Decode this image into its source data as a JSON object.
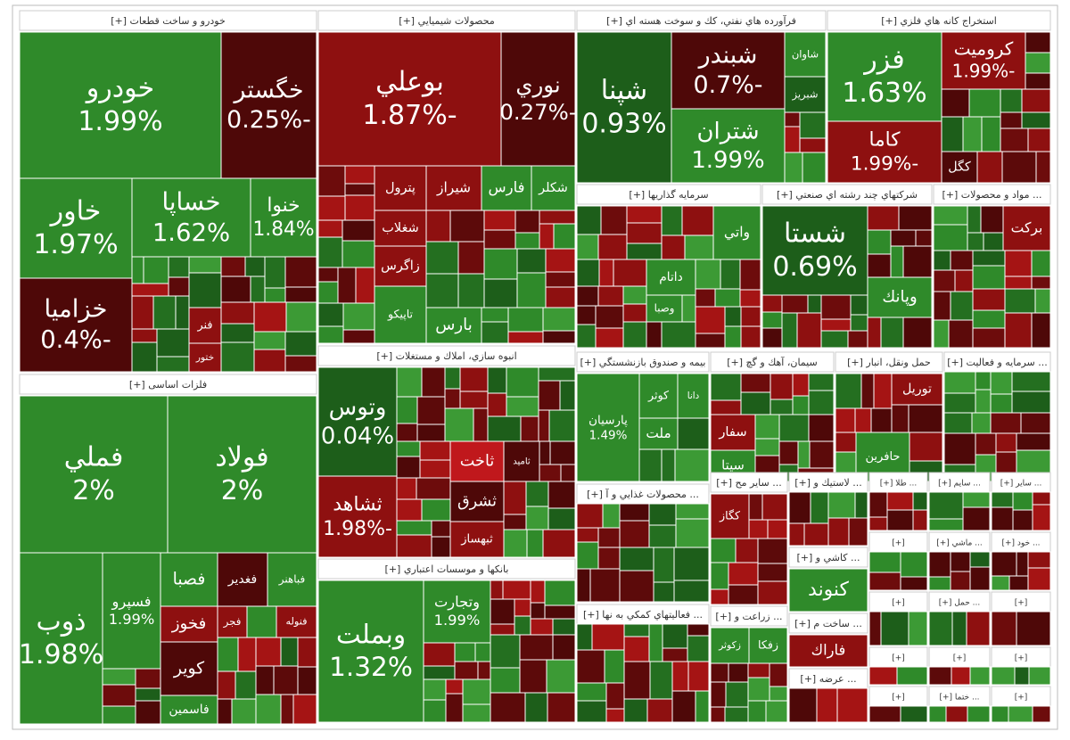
{
  "sectors": [
    {
      "title": "خودرو و ساخت قطعات [+]",
      "tiles": [
        {
          "label": "خودرو",
          "change": "1.99%"
        },
        {
          "label": "خگستر",
          "change": "-0.25%"
        },
        {
          "label": "خاور",
          "change": "1.97%"
        },
        {
          "label": "خساپا",
          "change": "1.62%"
        },
        {
          "label": "خنوا",
          "change": "1.84%"
        },
        {
          "label": "خزامیا",
          "change": "-0.4%"
        },
        {
          "label": "فنر"
        },
        {
          "label": "ختور"
        }
      ]
    },
    {
      "title": "فلزات اساسی [+]",
      "tiles": [
        {
          "label": "فملي",
          "change": "2%"
        },
        {
          "label": "فولاد",
          "change": "2%"
        },
        {
          "label": "ذوب",
          "change": "1.98%"
        },
        {
          "label": "فسپرو",
          "change": "1.99%"
        },
        {
          "label": "فباهنر"
        },
        {
          "label": "فغدير"
        },
        {
          "label": "فصبا"
        },
        {
          "label": "فنوله"
        },
        {
          "label": "فجر"
        },
        {
          "label": "فخوز"
        },
        {
          "label": "كوير"
        },
        {
          "label": "فاسمين"
        }
      ]
    },
    {
      "title": "محصولات شيميايي [+]",
      "tiles": [
        {
          "label": "بوعلي",
          "change": "-1.87%"
        },
        {
          "label": "نوري",
          "change": "-0.27%"
        },
        {
          "label": "شكلر"
        },
        {
          "label": "فارس"
        },
        {
          "label": "شيراز"
        },
        {
          "label": "پترول"
        },
        {
          "label": "شغلاب"
        },
        {
          "label": "زاگرس"
        },
        {
          "label": "تاپيكو"
        },
        {
          "label": "بارس"
        }
      ]
    },
    {
      "title": "انبوه سازي، املاك و مستغلات [+]",
      "tiles": [
        {
          "label": "وتوس",
          "change": "0.04%"
        },
        {
          "label": "ثشاهد",
          "change": "-1.98%"
        },
        {
          "label": "ثاخت"
        },
        {
          "label": "ثاميد"
        },
        {
          "label": "ثشرق"
        },
        {
          "label": "ثبهساز"
        }
      ]
    },
    {
      "title": "بانكها و موسسات اعتباري [+]",
      "tiles": [
        {
          "label": "وبملت",
          "change": "1.32%"
        },
        {
          "label": "وتجارت",
          "change": "1.99%"
        }
      ]
    },
    {
      "title": "فرآورده هاي نفتي، كك و سوخت هسته اي [+]",
      "tiles": [
        {
          "label": "شپنا",
          "change": "0.93%"
        },
        {
          "label": "شبندر",
          "change": "-0.7%"
        },
        {
          "label": "شتران",
          "change": "1.99%"
        },
        {
          "label": "شاوان"
        },
        {
          "label": "شبريز"
        }
      ]
    },
    {
      "title": "استخراج كانه هاي فلزي [+]",
      "tiles": [
        {
          "label": "فزر",
          "change": "1.63%"
        },
        {
          "label": "كروميت",
          "change": "-1.99%"
        },
        {
          "label": "كاما",
          "change": "-1.99%"
        },
        {
          "label": "كگل"
        }
      ]
    },
    {
      "title": "سرمايه گذاريها [+]",
      "tiles": [
        {
          "label": "واتي"
        },
        {
          "label": "داتام"
        },
        {
          "label": "وصبا"
        }
      ]
    },
    {
      "title": "شركتهاي چند رشته اي صنعتي [+]",
      "tiles": [
        {
          "label": "شستا",
          "change": "0.69%"
        },
        {
          "label": "وپانك"
        }
      ]
    },
    {
      "title": "... مواد و محصولات [+]",
      "tiles": [
        {
          "label": "بركت"
        }
      ]
    },
    {
      "title": "بيمه و صندوق بازنشستگي [+]",
      "tiles": [
        {
          "label": "پارسيان",
          "change": "1.49%"
        },
        {
          "label": "كوثر"
        },
        {
          "label": "دانا"
        },
        {
          "label": "ملت"
        }
      ]
    },
    {
      "title": "سيمان، آهك و گچ [+]",
      "tiles": [
        {
          "label": "سفار"
        },
        {
          "label": "سيتا"
        }
      ]
    },
    {
      "title": "حمل ونقل، انبار [+]",
      "tiles": [
        {
          "label": "توريل"
        },
        {
          "label": "حافرين"
        }
      ]
    },
    {
      "title": "... سرمايه و فعاليت [+]",
      "tiles": []
    },
    {
      "title": "... محصولات غذايي و آ [+]",
      "tiles": []
    },
    {
      "title": "... ساير مح [+]",
      "tiles": [
        {
          "label": "كگاز"
        }
      ]
    },
    {
      "title": "... فعاليتهاي كمكي به نها [+]",
      "tiles": []
    },
    {
      "title": "... زراعت و [+]",
      "tiles": [
        {
          "label": "زفكا"
        },
        {
          "label": "زكوثر"
        }
      ]
    },
    {
      "title": "... لاستيك و [+]",
      "tiles": []
    },
    {
      "title": "... كاشي و [+]",
      "tiles": [
        {
          "label": "كنوند"
        }
      ]
    },
    {
      "title": "... ساخت م [+]",
      "tiles": [
        {
          "label": "فاراك"
        }
      ]
    },
    {
      "title": "... عرضه [+]",
      "tiles": []
    },
    {
      "title": "... طلا [+]",
      "tiles": []
    },
    {
      "title": "... سايم [+]",
      "tiles": []
    },
    {
      "title": "... ساير [+]",
      "tiles": []
    },
    {
      "title": "[+]",
      "tiles": []
    },
    {
      "title": "... ماشي [+]",
      "tiles": []
    },
    {
      "title": "... خود [+]",
      "tiles": []
    },
    {
      "title": "[+]",
      "tiles": []
    },
    {
      "title": "... حمل [+]",
      "tiles": []
    },
    {
      "title": "[+]",
      "tiles": []
    },
    {
      "title": "[+]",
      "tiles": []
    },
    {
      "title": "[+]",
      "tiles": []
    },
    {
      "title": "[+]",
      "tiles": []
    },
    {
      "title": "... ختما [+]",
      "tiles": []
    },
    {
      "title": "[+]",
      "tiles": []
    },
    {
      "title": "[+]",
      "tiles": []
    }
  ]
}
